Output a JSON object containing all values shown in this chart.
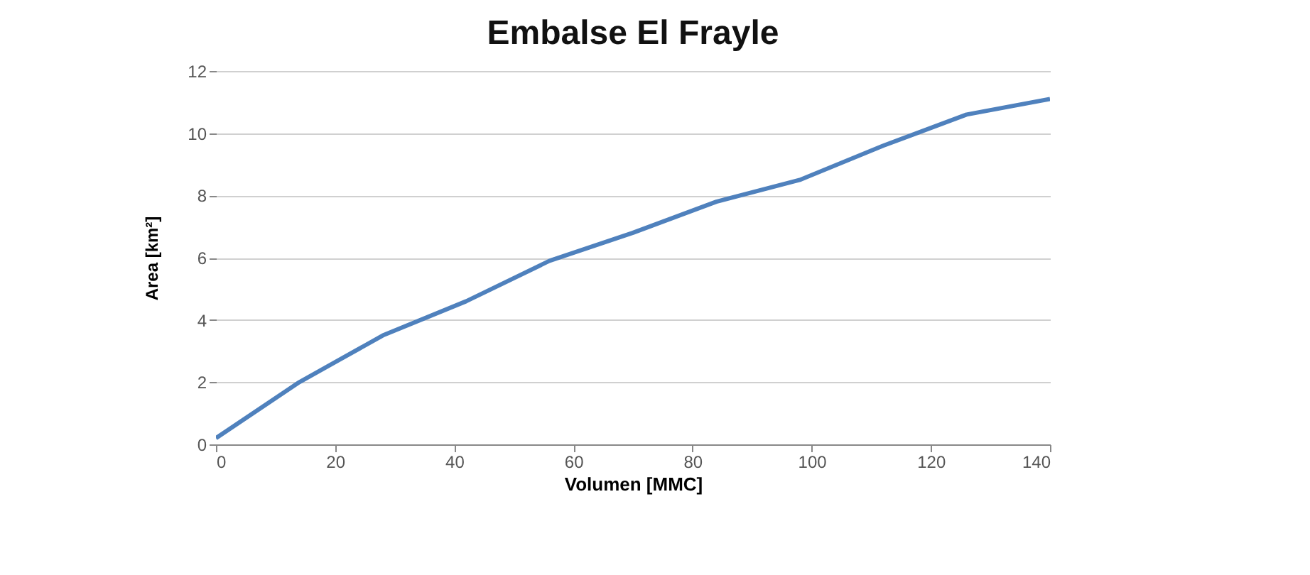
{
  "chart_data": {
    "type": "line",
    "title": "Embalse El Frayle",
    "xlabel": "Volumen [MMC]",
    "ylabel": "Area [km²]",
    "x": [
      0,
      14,
      28,
      42,
      56,
      70,
      84,
      98,
      112,
      126,
      140
    ],
    "series": [
      {
        "color": "#4f81bd",
        "values": [
          0.2,
          2.0,
          3.5,
          4.6,
          5.9,
          6.8,
          7.8,
          8.5,
          9.6,
          10.6,
          11.1
        ]
      }
    ],
    "xlim": [
      0,
      140
    ],
    "xticks": [
      0,
      20,
      40,
      60,
      80,
      100,
      120,
      140
    ],
    "ylim": [
      0,
      12
    ],
    "yticks": [
      0,
      2,
      4,
      6,
      8,
      10,
      12
    ],
    "grid": "y",
    "marker": "none",
    "line_style": "solid"
  }
}
